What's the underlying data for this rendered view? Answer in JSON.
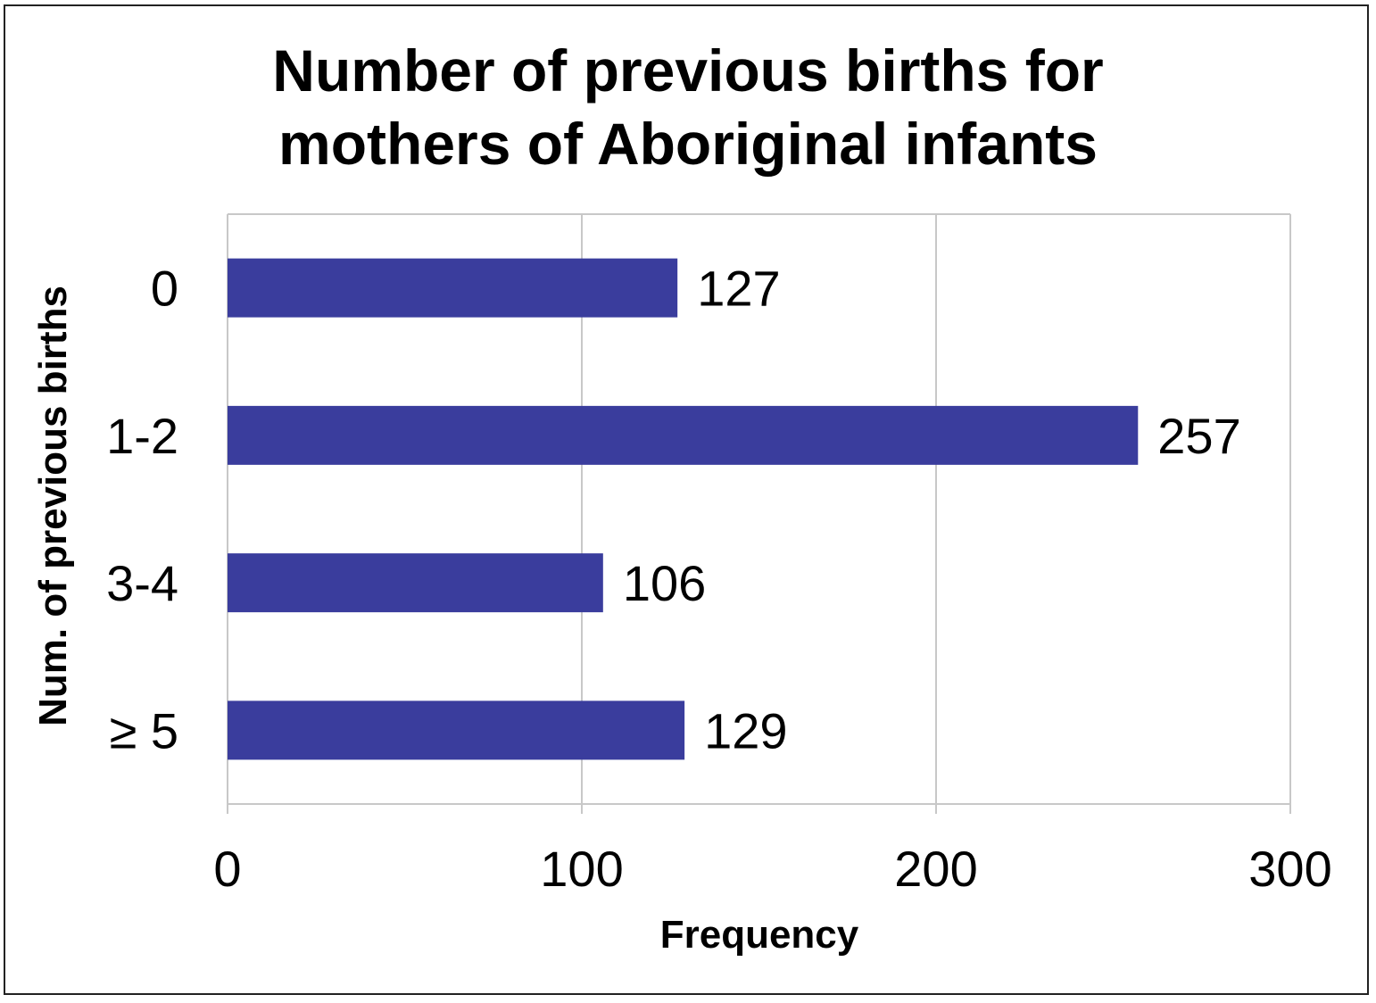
{
  "chart_data": {
    "type": "bar",
    "orientation": "horizontal",
    "title_lines": [
      "Number of previous births for",
      "mothers of Aboriginal infants"
    ],
    "categories": [
      "0",
      "1-2",
      "3-4",
      "≥ 5"
    ],
    "values": [
      127,
      257,
      106,
      129
    ],
    "data_labels": [
      "127",
      "257",
      "106",
      "129"
    ],
    "xlabel": "Frequency",
    "ylabel": "Num. of previous births",
    "xlim": [
      0,
      300
    ],
    "xticks": [
      0,
      100,
      200,
      300
    ],
    "xtick_labels": [
      "0",
      "100",
      "200",
      "300"
    ],
    "grid": true,
    "legend": "none",
    "bar_color": "#3a3d9d",
    "grid_color": "#c8c8c8"
  }
}
